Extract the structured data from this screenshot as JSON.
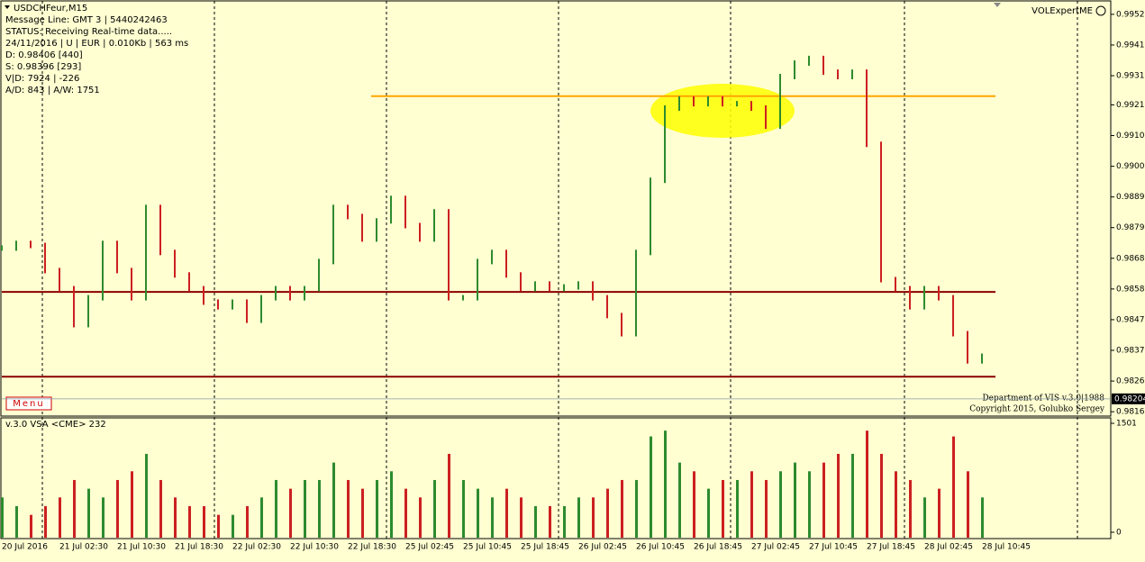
{
  "chart_data": {
    "type": "price-bars",
    "title": "USDCHFeur,M15",
    "info_lines": [
      "Message Line: GMT 3 | 5440242463",
      "STATUS: Receiving Real-time data.....",
      "24/11/2016 | U | EUR | 0.010Kb | 563 ms",
      "D: 0.98406  [440]",
      "S: 0.98396  [293]",
      "V|D: 7924 | -226",
      "A/D: 843 | A/W: 1751"
    ],
    "expert": "VOLExpertME",
    "menu": "Menu",
    "credits": [
      "Department of VIS v.3.0|1988",
      "Copyright 2015, Golubko Sergey"
    ],
    "current_price": {
      "value": 0.98204,
      "label": "0.98204"
    },
    "up_color": "#2e8b2e",
    "down_color": "#cc2020",
    "xticks": [
      "20 Jul 2016",
      "21 Jul 02:30",
      "21 Jul 10:30",
      "21 Jul 18:30",
      "22 Jul 02:30",
      "22 Jul 10:30",
      "22 Jul 18:30",
      "25 Jul 02:45",
      "25 Jul 10:45",
      "25 Jul 18:45",
      "26 Jul 02:45",
      "26 Jul 10:45",
      "26 Jul 18:45",
      "27 Jul 02:45",
      "27 Jul 10:45",
      "27 Jul 18:45",
      "28 Jul 02:45",
      "28 Jul 10:45"
    ],
    "ylim": [
      0.98145,
      0.99569
    ],
    "yticks": [
      {
        "value": 0.9952,
        "label": "0.99520"
      },
      {
        "value": 0.99415,
        "label": "0.99415"
      },
      {
        "value": 0.9931,
        "label": "0.99310"
      },
      {
        "value": 0.9921,
        "label": "0.99210"
      },
      {
        "value": 0.99105,
        "label": "0.99105"
      },
      {
        "value": 0.99,
        "label": "0.99000"
      },
      {
        "value": 0.98895,
        "label": "0.98895"
      },
      {
        "value": 0.9879,
        "label": "0.98790"
      },
      {
        "value": 0.98685,
        "label": "0.98685"
      },
      {
        "value": 0.9858,
        "label": "0.98580"
      },
      {
        "value": 0.98475,
        "label": "0.98475"
      },
      {
        "value": 0.9837,
        "label": "0.98370"
      },
      {
        "value": 0.98265,
        "label": "0.98265"
      },
      {
        "value": 0.9816,
        "label": "0.98160"
      }
    ],
    "levels": [
      {
        "value": 0.9924,
        "color": "#ffa500"
      },
      {
        "value": 0.9857,
        "color": "#8b0000"
      },
      {
        "value": 0.9828,
        "color": "#8b0000"
      }
    ],
    "values": [
      0.9872,
      0.98736,
      0.98729,
      0.98643,
      0.98581,
      0.98458,
      0.9855,
      0.98736,
      0.98643,
      0.9855,
      0.98859,
      0.98705,
      0.98628,
      0.98581,
      0.98535,
      0.98519,
      0.98535,
      0.98473,
      0.9855,
      0.98581,
      0.9855,
      0.98581,
      0.98674,
      0.98859,
      0.98828,
      0.98751,
      0.98813,
      0.9889,
      0.98797,
      0.98751,
      0.98844,
      0.9855,
      0.9855,
      0.98674,
      0.98705,
      0.98628,
      0.98581,
      0.98597,
      0.98581,
      0.98587,
      0.98597,
      0.9855,
      0.98489,
      0.98427,
      0.98705,
      0.98952,
      0.99199,
      0.9923,
      0.99214,
      0.9923,
      0.99214,
      0.99214,
      0.99199,
      0.99137,
      0.99307,
      0.99353,
      0.99369,
      0.99322,
      0.99307,
      0.99322,
      0.99075,
      0.98612,
      0.98581,
      0.98519,
      0.98581,
      0.9855,
      0.98427,
      0.98334,
      0.9835
    ],
    "volume": {
      "title": "v.3.0 VSA  <CME>  232",
      "ylim": [
        0,
        1501
      ],
      "yticks": [
        0,
        1501
      ],
      "values": [
        480,
        360,
        240,
        360,
        480,
        720,
        600,
        480,
        720,
        840,
        1080,
        720,
        480,
        360,
        360,
        240,
        240,
        360,
        480,
        720,
        600,
        720,
        720,
        960,
        720,
        600,
        720,
        840,
        600,
        480,
        720,
        1080,
        720,
        600,
        480,
        600,
        480,
        360,
        360,
        360,
        480,
        480,
        600,
        720,
        720,
        1320,
        1400,
        960,
        840,
        600,
        720,
        720,
        840,
        720,
        840,
        960,
        840,
        960,
        1080,
        1080,
        1400,
        1080,
        840,
        720,
        480,
        600,
        1320,
        840,
        480
      ]
    }
  }
}
